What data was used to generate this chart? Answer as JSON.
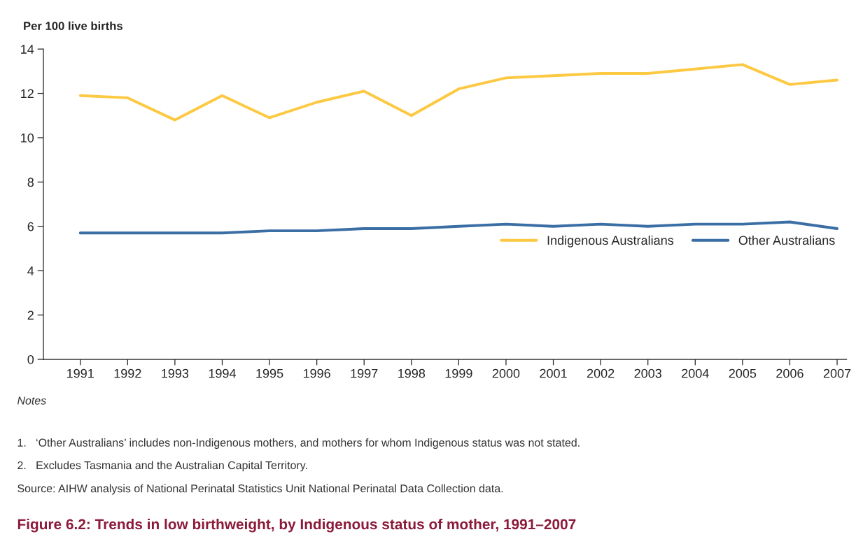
{
  "chart_data": {
    "type": "line",
    "title": "Figure 6.2: Trends in low birthweight, by Indigenous status of mother, 1991–2007",
    "ylabel": "Per 100 live births",
    "categories": [
      "1991",
      "1992",
      "1993",
      "1994",
      "1995",
      "1996",
      "1997",
      "1998",
      "1999",
      "2000",
      "2001",
      "2002",
      "2003",
      "2004",
      "2005",
      "2006",
      "2007"
    ],
    "series": [
      {
        "name": "Indigenous Australians",
        "color": "#fdc943",
        "values": [
          11.9,
          11.8,
          10.8,
          11.9,
          10.9,
          11.6,
          12.1,
          11.0,
          12.2,
          12.7,
          12.8,
          12.9,
          12.9,
          13.1,
          13.3,
          12.4,
          12.6
        ]
      },
      {
        "name": "Other Australians",
        "color": "#3a6ea5",
        "values": [
          5.7,
          5.7,
          5.7,
          5.7,
          5.8,
          5.8,
          5.9,
          5.9,
          6.0,
          6.1,
          6.0,
          6.1,
          6.0,
          6.1,
          6.1,
          6.2,
          5.9
        ]
      }
    ],
    "ylim": [
      0,
      14
    ],
    "yticks": [
      0,
      2,
      4,
      6,
      8,
      10,
      12,
      14
    ],
    "grid": false,
    "legend": "right",
    "marker": "none",
    "line_style": "solid",
    "annotations": [
      "Notes",
      "1.   ‘Other Australians’ includes non-Indigenous mothers, and mothers for whom Indigenous status was not stated.",
      "2.   Excludes Tasmania and the Australian Capital Territory.",
      "Source: AIHW analysis of National Perinatal Statistics Unit National Perinatal Data Collection data."
    ]
  }
}
